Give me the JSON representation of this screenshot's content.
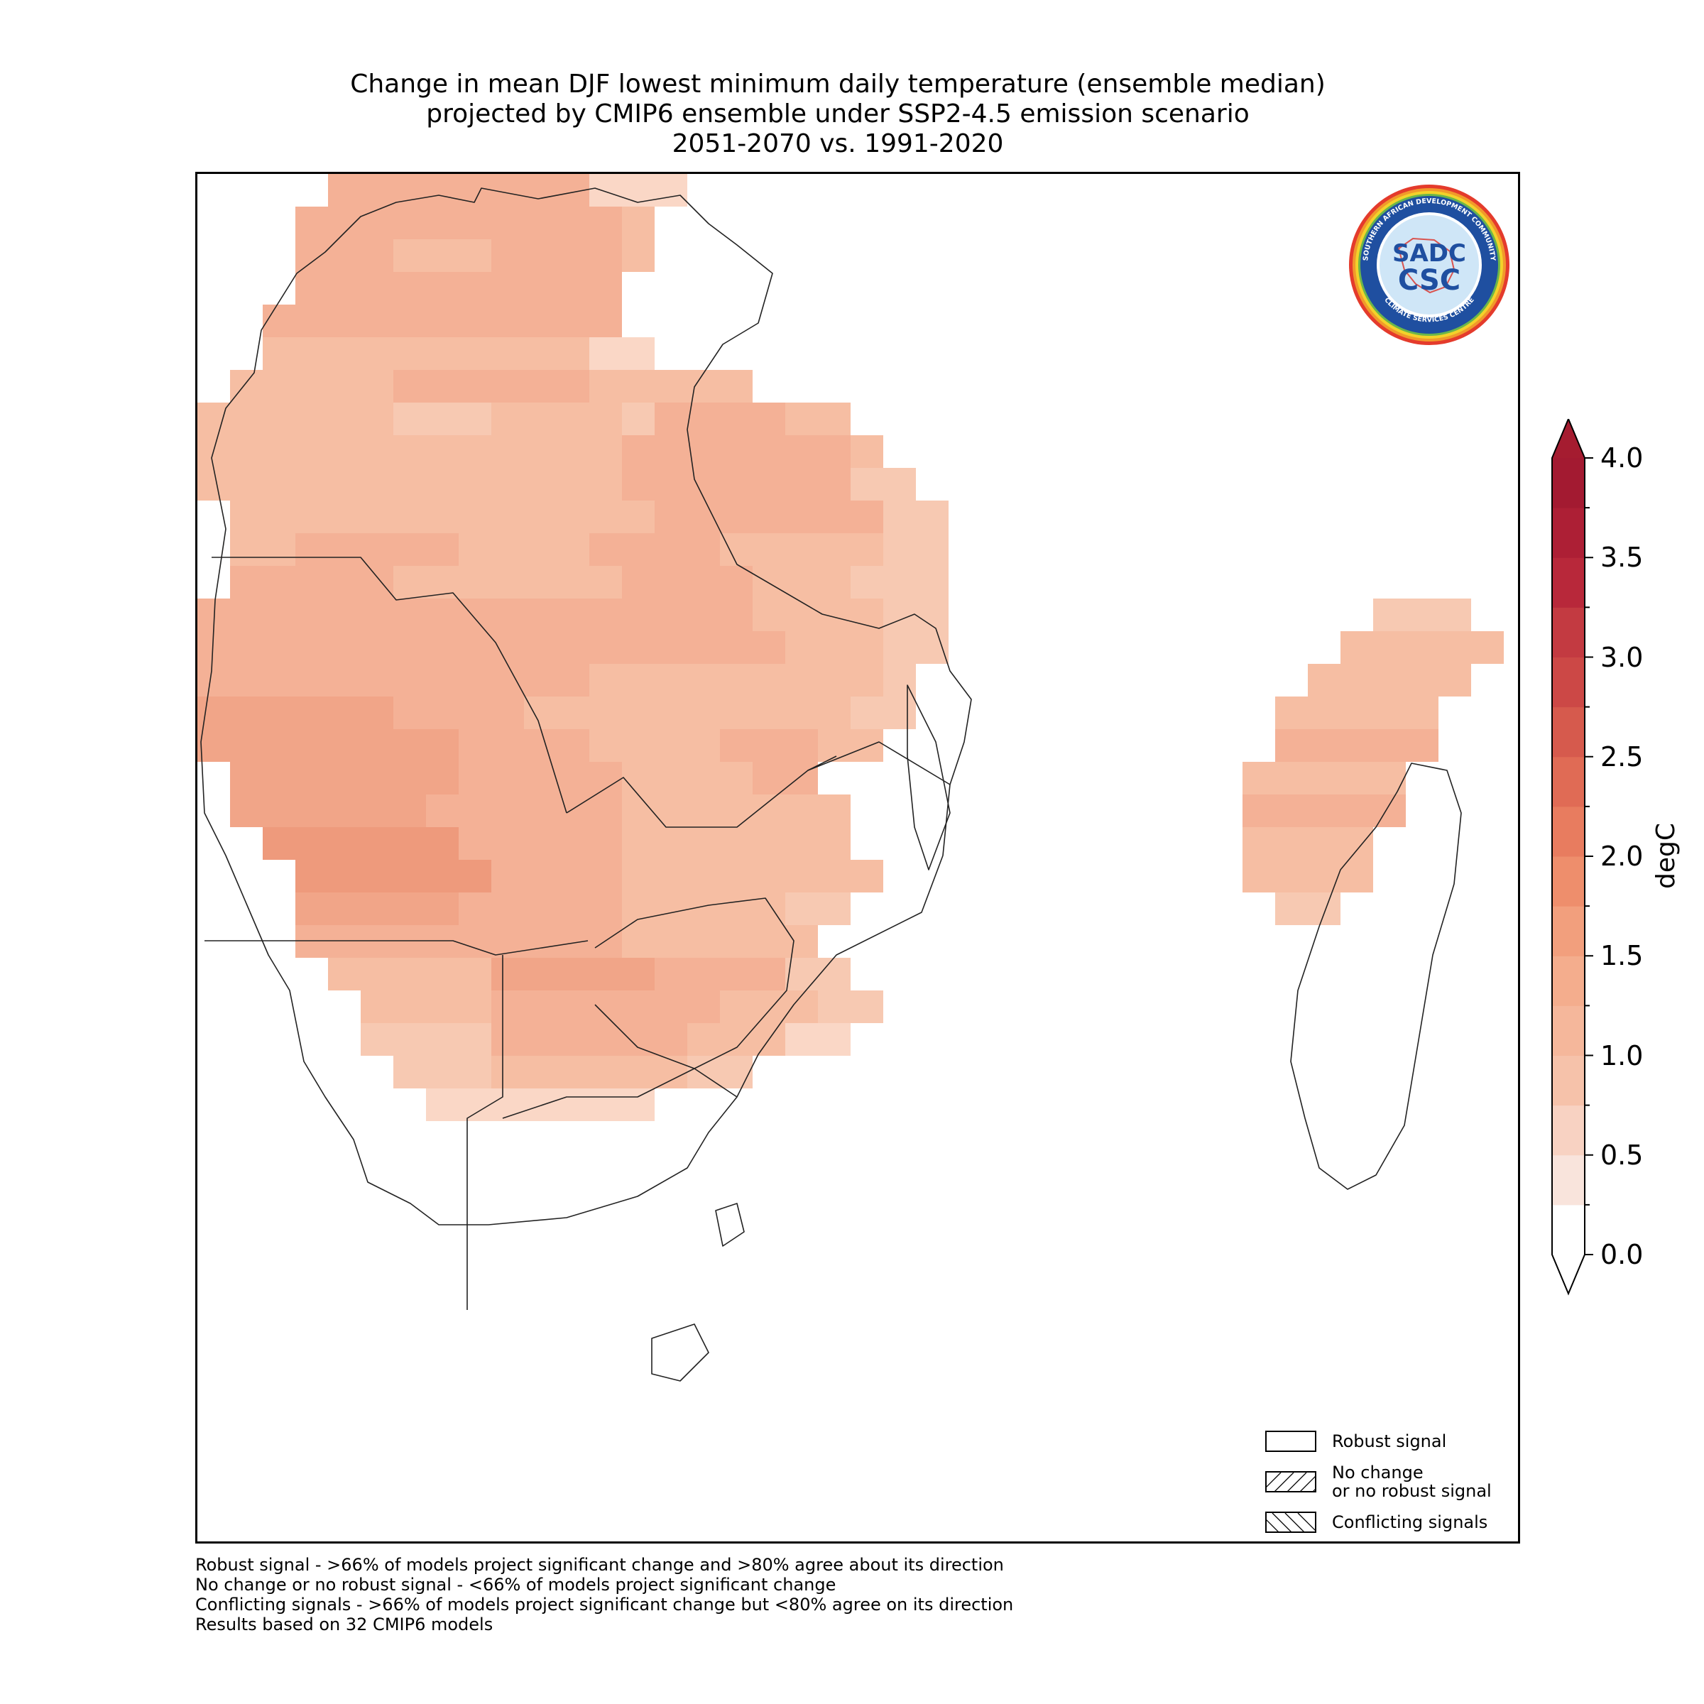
{
  "title": {
    "line1": "Change in mean DJF lowest minimum daily temperature (ensemble median)",
    "line2": "projected by CMIP6 ensemble under SSP2-4.5 emission scenario",
    "line3": "2051-2070 vs. 1991-2020"
  },
  "logo": {
    "ring_text_top": "SOUTHERN AFRICAN DEVELOPMENT COMMUNITY",
    "ring_text_bottom": "CLIMATE SERVICES CENTRE",
    "monogram_top": "SADC",
    "monogram_bottom": "CSC"
  },
  "colorbar": {
    "label": "degC",
    "min": 0.0,
    "max": 4.0,
    "step": 0.25,
    "tick_labels": [
      "0.0",
      "0.5",
      "1.0",
      "1.5",
      "2.0",
      "2.5",
      "3.0",
      "3.5",
      "4.0"
    ],
    "extend": "both",
    "colors": [
      "#ffffff",
      "#f9e4dc",
      "#f8d2c2",
      "#f6c2aa",
      "#f5b79b",
      "#f4ad8d",
      "#f29f7d",
      "#ee8e6c",
      "#e87c5f",
      "#e06b55",
      "#d65a4d",
      "#cc4846",
      "#c33a41",
      "#b8283a",
      "#ad1f35",
      "#a31a31"
    ],
    "over_color": "#a51c30",
    "under_color": "#ffffff"
  },
  "legend": {
    "items": [
      {
        "label": "Robust signal",
        "hatch": "none"
      },
      {
        "label_line1": "No change",
        "label_line2": "or no robust signal",
        "hatch": "diagonal"
      },
      {
        "label": "Conflicting signals",
        "hatch": "backslash"
      }
    ]
  },
  "footnotes": [
    "Robust signal - >66% of models project significant change and >80% agree about its direction",
    "No change or no robust signal - <66% of models project significant change",
    "Conflicting signals - >66% of models project significant change but <80% agree on its direction",
    "Results based on 32 CMIP6 models"
  ],
  "map_data": {
    "grid_cells_degC_description_values": {
      "north_interior": 1.6,
      "east_africa": 1.6,
      "angola": 1.7,
      "zambia": 1.6,
      "namibia": 1.9,
      "namibia_south": 2.0,
      "south_africa": 1.7,
      "mozambique_coast": 1.3,
      "madagascar": 1.5,
      "south_coast": 1.2
    }
  }
}
